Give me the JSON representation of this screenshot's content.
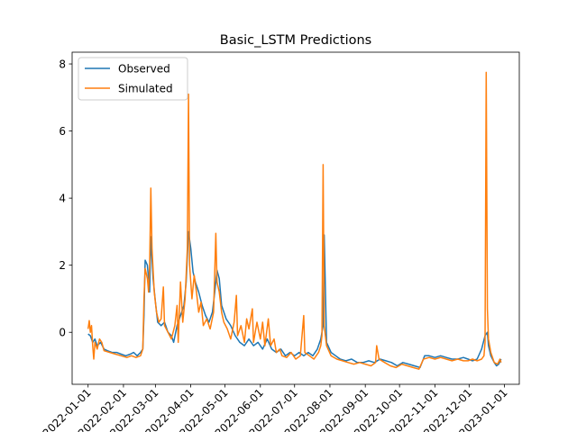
{
  "chart_data": {
    "type": "line",
    "title": "Basic_LSTM Predictions",
    "xlabel": "",
    "ylabel": "",
    "xlim": [
      "2021-12-18",
      "2023-01-14"
    ],
    "ylim": [
      -1.55,
      8.35
    ],
    "grid": false,
    "legend_position": "top-left",
    "y_ticks": [
      0,
      2,
      4,
      6,
      8
    ],
    "x_ticks": [
      "2022-01-01",
      "2022-02-01",
      "2022-03-01",
      "2022-04-01",
      "2022-05-01",
      "2022-06-01",
      "2022-07-01",
      "2022-08-01",
      "2022-09-01",
      "2022-10-01",
      "2022-11-01",
      "2022-12-01",
      "2023-01-01"
    ],
    "x_tick_labels": [
      "2022-01-01",
      "2022-02-01",
      "2022-03-01",
      "2022-04-01",
      "2022-05-01",
      "2022-06-01",
      "2022-07-01",
      "2022-08-01",
      "2022-09-01",
      "2022-10-01",
      "2022-11-01",
      "2022-12-01",
      "2023-01-01"
    ],
    "series": [
      {
        "name": "Observed",
        "color": "#1f77b4",
        "points": [
          [
            "2022-01-01",
            -0.05
          ],
          [
            "2022-01-03",
            -0.1
          ],
          [
            "2022-01-05",
            -0.3
          ],
          [
            "2022-01-07",
            -0.2
          ],
          [
            "2022-01-09",
            -0.4
          ],
          [
            "2022-01-12",
            -0.3
          ],
          [
            "2022-01-15",
            -0.5
          ],
          [
            "2022-01-18",
            -0.55
          ],
          [
            "2022-01-22",
            -0.6
          ],
          [
            "2022-01-26",
            -0.6
          ],
          [
            "2022-01-30",
            -0.65
          ],
          [
            "2022-02-03",
            -0.7
          ],
          [
            "2022-02-07",
            -0.65
          ],
          [
            "2022-02-10",
            -0.6
          ],
          [
            "2022-02-13",
            -0.7
          ],
          [
            "2022-02-16",
            -0.6
          ],
          [
            "2022-02-18",
            -0.5
          ],
          [
            "2022-02-19",
            0.5
          ],
          [
            "2022-02-20",
            2.15
          ],
          [
            "2022-02-22",
            2.0
          ],
          [
            "2022-02-24",
            1.2
          ],
          [
            "2022-02-25",
            2.85
          ],
          [
            "2022-02-27",
            1.6
          ],
          [
            "2022-03-01",
            0.9
          ],
          [
            "2022-03-03",
            0.3
          ],
          [
            "2022-03-06",
            0.2
          ],
          [
            "2022-03-09",
            0.3
          ],
          [
            "2022-03-12",
            0.0
          ],
          [
            "2022-03-15",
            -0.1
          ],
          [
            "2022-03-17",
            -0.3
          ],
          [
            "2022-03-20",
            0.2
          ],
          [
            "2022-03-23",
            0.5
          ],
          [
            "2022-03-26",
            0.8
          ],
          [
            "2022-03-28",
            1.5
          ],
          [
            "2022-03-30",
            3.0
          ],
          [
            "2022-04-01",
            2.5
          ],
          [
            "2022-04-03",
            1.8
          ],
          [
            "2022-04-05",
            1.5
          ],
          [
            "2022-04-08",
            1.2
          ],
          [
            "2022-04-11",
            0.8
          ],
          [
            "2022-04-14",
            0.5
          ],
          [
            "2022-04-17",
            0.3
          ],
          [
            "2022-04-20",
            0.6
          ],
          [
            "2022-04-22",
            1.2
          ],
          [
            "2022-04-24",
            1.85
          ],
          [
            "2022-04-26",
            1.6
          ],
          [
            "2022-04-28",
            0.8
          ],
          [
            "2022-05-02",
            0.4
          ],
          [
            "2022-05-06",
            0.2
          ],
          [
            "2022-05-10",
            -0.1
          ],
          [
            "2022-05-14",
            -0.3
          ],
          [
            "2022-05-18",
            -0.4
          ],
          [
            "2022-05-22",
            -0.2
          ],
          [
            "2022-05-26",
            -0.4
          ],
          [
            "2022-05-30",
            -0.3
          ],
          [
            "2022-06-03",
            -0.5
          ],
          [
            "2022-06-07",
            -0.2
          ],
          [
            "2022-06-11",
            -0.5
          ],
          [
            "2022-06-15",
            -0.6
          ],
          [
            "2022-06-19",
            -0.5
          ],
          [
            "2022-06-23",
            -0.7
          ],
          [
            "2022-06-27",
            -0.6
          ],
          [
            "2022-07-01",
            -0.7
          ],
          [
            "2022-07-05",
            -0.6
          ],
          [
            "2022-07-09",
            -0.7
          ],
          [
            "2022-07-13",
            -0.6
          ],
          [
            "2022-07-17",
            -0.7
          ],
          [
            "2022-07-21",
            -0.5
          ],
          [
            "2022-07-24",
            -0.2
          ],
          [
            "2022-07-26",
            0.2
          ],
          [
            "2022-07-27",
            2.9
          ],
          [
            "2022-07-29",
            -0.3
          ],
          [
            "2022-08-02",
            -0.6
          ],
          [
            "2022-08-06",
            -0.7
          ],
          [
            "2022-08-10",
            -0.8
          ],
          [
            "2022-08-15",
            -0.85
          ],
          [
            "2022-08-20",
            -0.8
          ],
          [
            "2022-08-25",
            -0.9
          ],
          [
            "2022-08-30",
            -0.9
          ],
          [
            "2022-09-04",
            -0.85
          ],
          [
            "2022-09-09",
            -0.9
          ],
          [
            "2022-09-14",
            -0.8
          ],
          [
            "2022-09-19",
            -0.85
          ],
          [
            "2022-09-24",
            -0.9
          ],
          [
            "2022-09-29",
            -1.0
          ],
          [
            "2022-10-04",
            -0.9
          ],
          [
            "2022-10-09",
            -0.95
          ],
          [
            "2022-10-14",
            -1.0
          ],
          [
            "2022-10-19",
            -1.05
          ],
          [
            "2022-10-23",
            -0.7
          ],
          [
            "2022-10-27",
            -0.7
          ],
          [
            "2022-11-01",
            -0.75
          ],
          [
            "2022-11-06",
            -0.7
          ],
          [
            "2022-11-11",
            -0.75
          ],
          [
            "2022-11-16",
            -0.8
          ],
          [
            "2022-11-21",
            -0.8
          ],
          [
            "2022-11-26",
            -0.75
          ],
          [
            "2022-11-30",
            -0.8
          ],
          [
            "2022-12-04",
            -0.85
          ],
          [
            "2022-12-08",
            -0.8
          ],
          [
            "2022-12-12",
            -0.5
          ],
          [
            "2022-12-15",
            -0.1
          ],
          [
            "2022-12-17",
            0.0
          ],
          [
            "2022-12-18",
            -0.4
          ],
          [
            "2022-12-20",
            -0.7
          ],
          [
            "2022-12-23",
            -0.9
          ],
          [
            "2022-12-25",
            -1.0
          ],
          [
            "2022-12-27",
            -0.95
          ],
          [
            "2022-12-29",
            -0.8
          ]
        ]
      },
      {
        "name": "Simulated",
        "color": "#ff7f0e",
        "points": [
          [
            "2022-01-01",
            0.1
          ],
          [
            "2022-01-02",
            0.35
          ],
          [
            "2022-01-03",
            0.0
          ],
          [
            "2022-01-04",
            0.2
          ],
          [
            "2022-01-05",
            -0.4
          ],
          [
            "2022-01-06",
            -0.8
          ],
          [
            "2022-01-07",
            -0.3
          ],
          [
            "2022-01-09",
            -0.5
          ],
          [
            "2022-01-11",
            -0.2
          ],
          [
            "2022-01-13",
            -0.3
          ],
          [
            "2022-01-15",
            -0.55
          ],
          [
            "2022-01-20",
            -0.6
          ],
          [
            "2022-01-25",
            -0.65
          ],
          [
            "2022-01-30",
            -0.7
          ],
          [
            "2022-02-04",
            -0.75
          ],
          [
            "2022-02-08",
            -0.7
          ],
          [
            "2022-02-12",
            -0.75
          ],
          [
            "2022-02-16",
            -0.7
          ],
          [
            "2022-02-18",
            -0.5
          ],
          [
            "2022-02-19",
            1.0
          ],
          [
            "2022-02-20",
            1.9
          ],
          [
            "2022-02-22",
            1.6
          ],
          [
            "2022-02-23",
            1.2
          ],
          [
            "2022-02-24",
            2.0
          ],
          [
            "2022-02-25",
            4.3
          ],
          [
            "2022-02-26",
            2.5
          ],
          [
            "2022-02-28",
            1.2
          ],
          [
            "2022-03-02",
            0.6
          ],
          [
            "2022-03-04",
            0.3
          ],
          [
            "2022-03-06",
            0.4
          ],
          [
            "2022-03-08",
            1.35
          ],
          [
            "2022-03-09",
            0.2
          ],
          [
            "2022-03-12",
            0.0
          ],
          [
            "2022-03-15",
            -0.2
          ],
          [
            "2022-03-18",
            0.2
          ],
          [
            "2022-03-20",
            0.8
          ],
          [
            "2022-03-21",
            -0.3
          ],
          [
            "2022-03-23",
            1.5
          ],
          [
            "2022-03-25",
            0.3
          ],
          [
            "2022-03-27",
            1.0
          ],
          [
            "2022-03-29",
            2.5
          ],
          [
            "2022-03-30",
            7.1
          ],
          [
            "2022-03-31",
            2.0
          ],
          [
            "2022-04-02",
            1.0
          ],
          [
            "2022-04-04",
            1.7
          ],
          [
            "2022-04-06",
            1.2
          ],
          [
            "2022-04-08",
            0.6
          ],
          [
            "2022-04-10",
            0.9
          ],
          [
            "2022-04-12",
            0.2
          ],
          [
            "2022-04-15",
            0.4
          ],
          [
            "2022-04-18",
            0.1
          ],
          [
            "2022-04-21",
            0.6
          ],
          [
            "2022-04-23",
            2.95
          ],
          [
            "2022-04-24",
            1.5
          ],
          [
            "2022-04-26",
            1.2
          ],
          [
            "2022-04-28",
            0.6
          ],
          [
            "2022-04-30",
            0.3
          ],
          [
            "2022-05-03",
            0.1
          ],
          [
            "2022-05-06",
            -0.2
          ],
          [
            "2022-05-09",
            0.3
          ],
          [
            "2022-05-11",
            1.1
          ],
          [
            "2022-05-12",
            -0.1
          ],
          [
            "2022-05-15",
            0.2
          ],
          [
            "2022-05-18",
            -0.3
          ],
          [
            "2022-05-20",
            0.4
          ],
          [
            "2022-05-22",
            0.1
          ],
          [
            "2022-05-25",
            0.7
          ],
          [
            "2022-05-26",
            -0.3
          ],
          [
            "2022-05-29",
            0.3
          ],
          [
            "2022-06-01",
            -0.2
          ],
          [
            "2022-06-03",
            0.3
          ],
          [
            "2022-06-05",
            -0.4
          ],
          [
            "2022-06-08",
            0.4
          ],
          [
            "2022-06-10",
            -0.4
          ],
          [
            "2022-06-13",
            -0.2
          ],
          [
            "2022-06-15",
            -0.6
          ],
          [
            "2022-06-18",
            -0.5
          ],
          [
            "2022-06-20",
            -0.7
          ],
          [
            "2022-06-24",
            -0.75
          ],
          [
            "2022-06-28",
            -0.6
          ],
          [
            "2022-07-02",
            -0.8
          ],
          [
            "2022-07-06",
            -0.7
          ],
          [
            "2022-07-09",
            0.5
          ],
          [
            "2022-07-10",
            -0.6
          ],
          [
            "2022-07-14",
            -0.7
          ],
          [
            "2022-07-18",
            -0.8
          ],
          [
            "2022-07-22",
            -0.6
          ],
          [
            "2022-07-24",
            -0.4
          ],
          [
            "2022-07-25",
            -0.1
          ],
          [
            "2022-07-26",
            5.0
          ],
          [
            "2022-07-27",
            0.2
          ],
          [
            "2022-07-29",
            -0.4
          ],
          [
            "2022-08-02",
            -0.7
          ],
          [
            "2022-08-07",
            -0.8
          ],
          [
            "2022-08-12",
            -0.85
          ],
          [
            "2022-08-17",
            -0.9
          ],
          [
            "2022-08-22",
            -0.95
          ],
          [
            "2022-08-27",
            -0.9
          ],
          [
            "2022-09-01",
            -0.95
          ],
          [
            "2022-09-06",
            -1.0
          ],
          [
            "2022-09-10",
            -0.9
          ],
          [
            "2022-09-11",
            -0.4
          ],
          [
            "2022-09-13",
            -0.8
          ],
          [
            "2022-09-18",
            -0.9
          ],
          [
            "2022-09-23",
            -1.0
          ],
          [
            "2022-09-28",
            -1.05
          ],
          [
            "2022-10-03",
            -0.95
          ],
          [
            "2022-10-08",
            -1.0
          ],
          [
            "2022-10-13",
            -1.05
          ],
          [
            "2022-10-18",
            -1.1
          ],
          [
            "2022-10-22",
            -0.8
          ],
          [
            "2022-10-27",
            -0.75
          ],
          [
            "2022-11-01",
            -0.8
          ],
          [
            "2022-11-06",
            -0.75
          ],
          [
            "2022-11-11",
            -0.8
          ],
          [
            "2022-11-16",
            -0.85
          ],
          [
            "2022-11-21",
            -0.8
          ],
          [
            "2022-11-26",
            -0.85
          ],
          [
            "2022-11-30",
            -0.85
          ],
          [
            "2022-12-04",
            -0.8
          ],
          [
            "2022-12-08",
            -0.85
          ],
          [
            "2022-12-12",
            -0.8
          ],
          [
            "2022-12-14",
            -0.7
          ],
          [
            "2022-12-15",
            -0.3
          ],
          [
            "2022-12-16",
            7.75
          ],
          [
            "2022-12-17",
            0.7
          ],
          [
            "2022-12-18",
            -0.2
          ],
          [
            "2022-12-20",
            -0.6
          ],
          [
            "2022-12-23",
            -0.9
          ],
          [
            "2022-12-26",
            -0.95
          ],
          [
            "2022-12-28",
            -0.8
          ],
          [
            "2022-12-29",
            -0.9
          ]
        ]
      }
    ]
  }
}
